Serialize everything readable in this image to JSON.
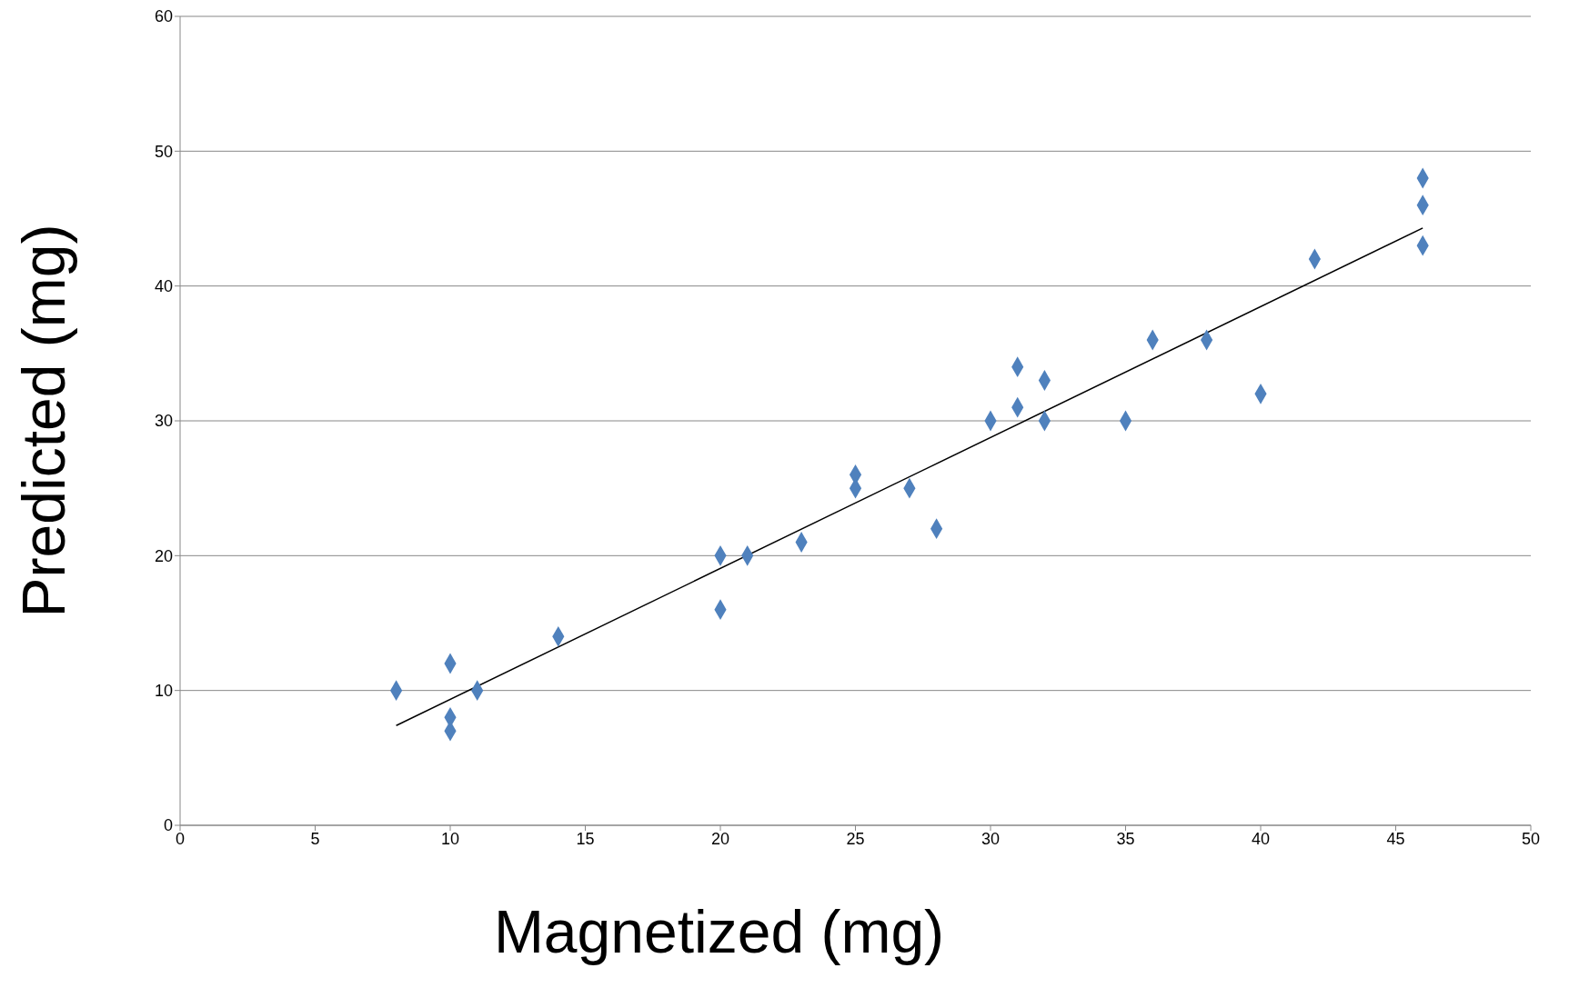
{
  "chart_data": {
    "type": "scatter",
    "xlabel": "Magnetized (mg)",
    "ylabel": "Predicted (mg)",
    "xlim": [
      0,
      50
    ],
    "xticks": [
      0,
      5,
      10,
      15,
      20,
      25,
      30,
      35,
      40,
      45,
      50
    ],
    "ylim": [
      0,
      60
    ],
    "yticks": [
      0,
      10,
      20,
      30,
      40,
      50,
      60
    ],
    "grid": "y",
    "series": [
      {
        "marker": "diamond",
        "color": "#4f81bd",
        "x": [
          8,
          10,
          10,
          10,
          11,
          14,
          20,
          20,
          21,
          23,
          25,
          25,
          27,
          28,
          30,
          31,
          31,
          32,
          32,
          35,
          36,
          38,
          40,
          42,
          46,
          46,
          46
        ],
        "values": [
          10,
          12,
          8,
          7,
          10,
          14,
          20,
          16,
          20,
          21,
          26,
          25,
          25,
          22,
          30,
          34,
          31,
          33,
          30,
          30,
          36,
          36,
          32,
          42,
          48,
          46,
          43
        ]
      },
      {
        "type": "line",
        "color": "#000000",
        "x": [
          8,
          46
        ],
        "values": [
          7.4,
          44.3
        ]
      }
    ]
  }
}
